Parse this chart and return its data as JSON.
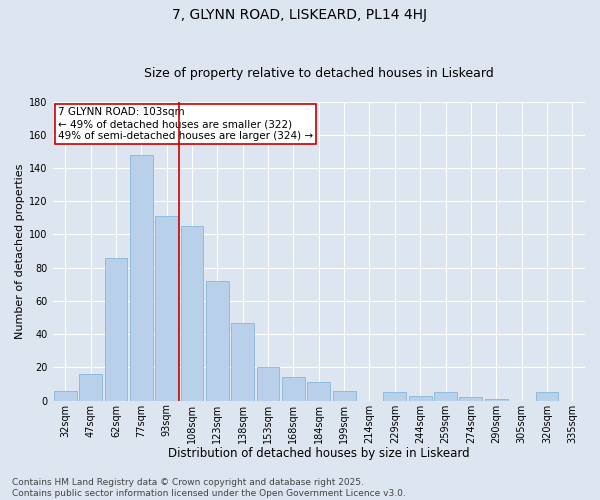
{
  "title": "7, GLYNN ROAD, LISKEARD, PL14 4HJ",
  "subtitle": "Size of property relative to detached houses in Liskeard",
  "xlabel": "Distribution of detached houses by size in Liskeard",
  "ylabel": "Number of detached properties",
  "categories": [
    "32sqm",
    "47sqm",
    "62sqm",
    "77sqm",
    "93sqm",
    "108sqm",
    "123sqm",
    "138sqm",
    "153sqm",
    "168sqm",
    "184sqm",
    "199sqm",
    "214sqm",
    "229sqm",
    "244sqm",
    "259sqm",
    "274sqm",
    "290sqm",
    "305sqm",
    "320sqm",
    "335sqm"
  ],
  "values": [
    6,
    16,
    86,
    148,
    111,
    105,
    72,
    47,
    20,
    14,
    11,
    6,
    0,
    5,
    3,
    5,
    2,
    1,
    0,
    5,
    0
  ],
  "bar_color": "#b8d0ea",
  "bar_edge_color": "#7aafd4",
  "vline_x": 4.5,
  "vline_color": "#cc0000",
  "annotation_line1": "7 GLYNN ROAD: 103sqm",
  "annotation_line2": "← 49% of detached houses are smaller (322)",
  "annotation_line3": "49% of semi-detached houses are larger (324) →",
  "annotation_box_color": "#ffffff",
  "annotation_box_edge": "#cc0000",
  "ylim": [
    0,
    180
  ],
  "yticks": [
    0,
    20,
    40,
    60,
    80,
    100,
    120,
    140,
    160,
    180
  ],
  "bg_color": "#dde5f0",
  "grid_color": "#ffffff",
  "footer_line1": "Contains HM Land Registry data © Crown copyright and database right 2025.",
  "footer_line2": "Contains public sector information licensed under the Open Government Licence v3.0.",
  "title_fontsize": 10,
  "subtitle_fontsize": 9,
  "xlabel_fontsize": 8.5,
  "ylabel_fontsize": 8,
  "tick_fontsize": 7,
  "annotation_fontsize": 7.5,
  "footer_fontsize": 6.5
}
